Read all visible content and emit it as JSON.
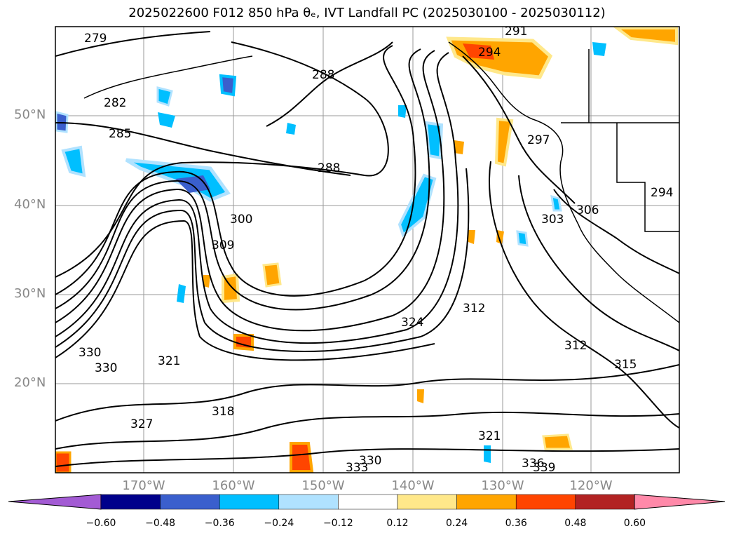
{
  "title": "2025022600 F012 850 hPa θₑ, IVT Landfall PC (2025030100 - 2025030112)",
  "lat_labels": [
    "50°N",
    "40°N",
    "30°N",
    "20°N"
  ],
  "lon_labels": [
    "170°W",
    "160°W",
    "150°W",
    "140°W",
    "130°W",
    "120°W"
  ],
  "contour_labels": [
    "279",
    "282",
    "285",
    "288",
    "288",
    "291",
    "294",
    "294",
    "297",
    "300",
    "303",
    "306",
    "309",
    "312",
    "312",
    "315",
    "318",
    "321",
    "321",
    "324",
    "327",
    "330",
    "330",
    "330",
    "333",
    "336",
    "339"
  ],
  "colorbar": {
    "ticks": [
      "−0.60",
      "−0.48",
      "−0.36",
      "−0.24",
      "−0.12",
      "0.12",
      "0.24",
      "0.36",
      "0.48",
      "0.60"
    ],
    "colors": [
      "#a35bd4",
      "#00008b",
      "#3a5fcd",
      "#00bfff",
      "#b0e2ff",
      "#ffffff",
      "#ffe88a",
      "#ffa500",
      "#ff4500",
      "#b22222",
      "#ff89a9",
      "#ff8fb1"
    ]
  }
}
